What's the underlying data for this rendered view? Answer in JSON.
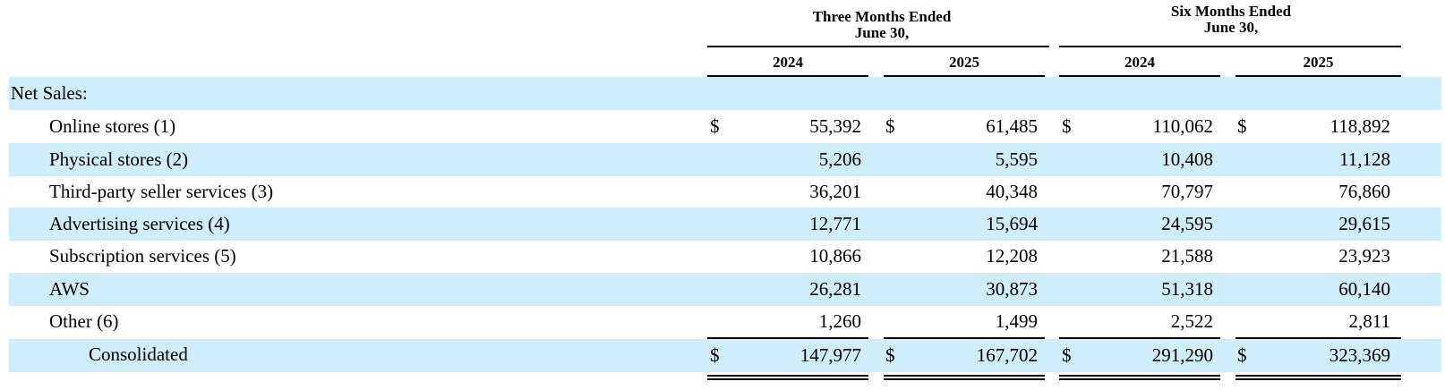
{
  "header": {
    "group1_line1": "Three Months Ended",
    "group1_line2": "June 30,",
    "group2_line1": "Six Months Ended",
    "group2_line2": "June 30,",
    "years": [
      "2024",
      "2025",
      "2024",
      "2025"
    ]
  },
  "currency_symbol": "$",
  "rows": [
    {
      "label": "Net Sales:",
      "values": [
        "",
        "",
        "",
        ""
      ],
      "shaded": true
    },
    {
      "label": "Online stores (1)",
      "values": [
        "55,392",
        "61,485",
        "110,062",
        "118,892"
      ],
      "dollar": true
    },
    {
      "label": "Physical stores (2)",
      "values": [
        "5,206",
        "5,595",
        "10,408",
        "11,128"
      ]
    },
    {
      "label": "Third-party seller services (3)",
      "values": [
        "36,201",
        "40,348",
        "70,797",
        "76,860"
      ]
    },
    {
      "label": "Advertising services (4)",
      "values": [
        "12,771",
        "15,694",
        "24,595",
        "29,615"
      ]
    },
    {
      "label": "Subscription services (5)",
      "values": [
        "10,866",
        "12,208",
        "21,588",
        "23,923"
      ]
    },
    {
      "label": "AWS",
      "values": [
        "26,281",
        "30,873",
        "51,318",
        "60,140"
      ]
    },
    {
      "label": "Other (6)",
      "values": [
        "1,260",
        "1,499",
        "2,522",
        "2,811"
      ]
    },
    {
      "label": "Consolidated",
      "values": [
        "147,977",
        "167,702",
        "291,290",
        "323,369"
      ],
      "dollar": true
    }
  ]
}
